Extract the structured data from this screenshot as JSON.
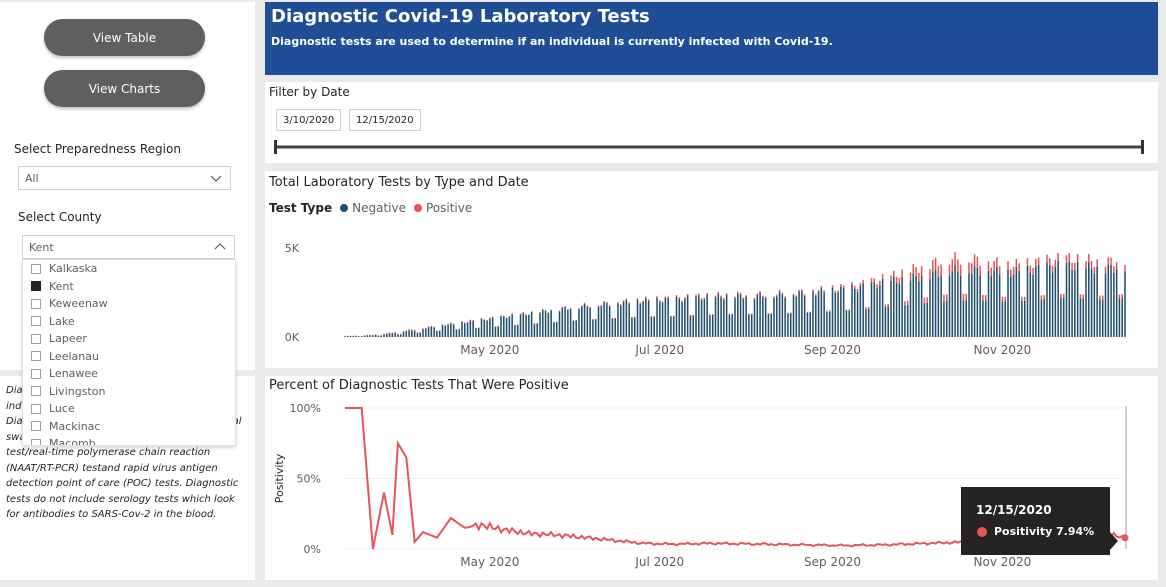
{
  "nav": {
    "view_table": "View Table",
    "view_charts": "View Charts"
  },
  "filters": {
    "region_label": "Select Preparedness Region",
    "region_value": "All",
    "county_label": "Select County",
    "county_value": "Kent",
    "county_options": [
      {
        "label": "Kalkaska",
        "checked": false
      },
      {
        "label": "Kent",
        "checked": true
      },
      {
        "label": "Keweenaw",
        "checked": false
      },
      {
        "label": "Lake",
        "checked": false
      },
      {
        "label": "Lapeer",
        "checked": false
      },
      {
        "label": "Leelanau",
        "checked": false
      },
      {
        "label": "Lenawee",
        "checked": false
      },
      {
        "label": "Livingston",
        "checked": false
      },
      {
        "label": "Luce",
        "checked": false
      },
      {
        "label": "Mackinac",
        "checked": false
      },
      {
        "label": "Macomb",
        "checked": false
      }
    ]
  },
  "description": {
    "text": "Diagnostic tests are used to determine if an individual is currently infected with Covid-19. Diagnostic tests, which are performed as nasal swabs, include: Nucleic acid amplification test/real-time polymerase chain reaction (NAAT/RT-PCR) testand rapid virus antigen detection point of care (POC) tests.  Diagnostic tests do not include serology tests which look for antibodies to SARS-Cov-2 in the blood."
  },
  "header": {
    "title": "Diagnostic Covid-19 Laboratory Tests",
    "subtitle": "Diagnostic tests are used to determine if an individual is currently infected with Covid-19."
  },
  "date_filter": {
    "label": "Filter by Date",
    "start": "3/10/2020",
    "end": "12/15/2020"
  },
  "tooltip": {
    "date": "12/15/2020",
    "series": "Positivity",
    "value": "7.94%"
  },
  "colors": {
    "negative": "#1f4e6b",
    "positive": "#e8545c",
    "header": "#1f4e96"
  },
  "chart_data": [
    {
      "type": "bar",
      "title": "Total Laboratory Tests by Type and Date",
      "legend_title": "Test Type",
      "legend_position": "top-left",
      "series_names": [
        "Negative",
        "Positive"
      ],
      "x_ticks": [
        "May 2020",
        "Jul 2020",
        "Sep 2020",
        "Nov 2020"
      ],
      "y_ticks": [
        "0K",
        "5K"
      ],
      "ylim": [
        0,
        6000
      ],
      "x_start": "2020-03-10",
      "x_end": "2020-12-15",
      "weekly_negative": [
        50,
        80,
        150,
        300,
        450,
        650,
        800,
        950,
        1100,
        1250,
        1400,
        1550,
        1700,
        1800,
        1900,
        2000,
        2050,
        2100,
        2200,
        2250,
        2300,
        2300,
        2350,
        2400,
        2500,
        2600,
        2700,
        2900,
        3100,
        3300,
        3500,
        3700,
        3750,
        3700,
        3600,
        3700,
        3900,
        4000,
        3900,
        3800,
        4000
      ],
      "weekly_positive": [
        10,
        20,
        40,
        60,
        60,
        50,
        40,
        35,
        30,
        30,
        35,
        40,
        50,
        60,
        70,
        75,
        80,
        80,
        80,
        85,
        90,
        90,
        90,
        95,
        100,
        120,
        150,
        200,
        300,
        450,
        600,
        700,
        650,
        550,
        450,
        400,
        400,
        420,
        420,
        400,
        380
      ]
    },
    {
      "type": "line",
      "title": "Percent of Diagnostic Tests That Were Positive",
      "ylabel": "Positivity",
      "y_ticks": [
        "0%",
        "50%",
        "100%"
      ],
      "ylim": [
        0,
        100
      ],
      "x_ticks": [
        "May 2020",
        "Jul 2020",
        "Sep 2020",
        "Nov 2020"
      ],
      "x_start": "2020-03-10",
      "x_end": "2020-12-15",
      "points": [
        [
          "2020-03-10",
          100
        ],
        [
          "2020-03-16",
          100
        ],
        [
          "2020-03-20",
          0
        ],
        [
          "2020-03-24",
          40
        ],
        [
          "2020-03-27",
          10
        ],
        [
          "2020-03-29",
          75
        ],
        [
          "2020-04-01",
          65
        ],
        [
          "2020-04-04",
          5
        ],
        [
          "2020-04-07",
          12
        ],
        [
          "2020-04-12",
          8
        ],
        [
          "2020-04-17",
          22
        ],
        [
          "2020-04-22",
          15
        ],
        [
          "2020-04-28",
          17
        ],
        [
          "2020-05-05",
          14
        ],
        [
          "2020-05-15",
          11
        ],
        [
          "2020-05-25",
          10
        ],
        [
          "2020-06-05",
          8
        ],
        [
          "2020-06-15",
          6
        ],
        [
          "2020-06-25",
          4
        ],
        [
          "2020-07-05",
          3.5
        ],
        [
          "2020-07-20",
          4
        ],
        [
          "2020-08-05",
          3.5
        ],
        [
          "2020-08-20",
          3
        ],
        [
          "2020-09-05",
          2.5
        ],
        [
          "2020-09-20",
          3
        ],
        [
          "2020-10-05",
          4
        ],
        [
          "2020-10-20",
          5
        ],
        [
          "2020-11-01",
          8
        ],
        [
          "2020-11-10",
          10
        ],
        [
          "2020-11-20",
          14
        ],
        [
          "2020-11-28",
          16
        ],
        [
          "2020-12-05",
          13
        ],
        [
          "2020-12-10",
          10
        ],
        [
          "2020-12-15",
          7.94
        ]
      ]
    }
  ]
}
